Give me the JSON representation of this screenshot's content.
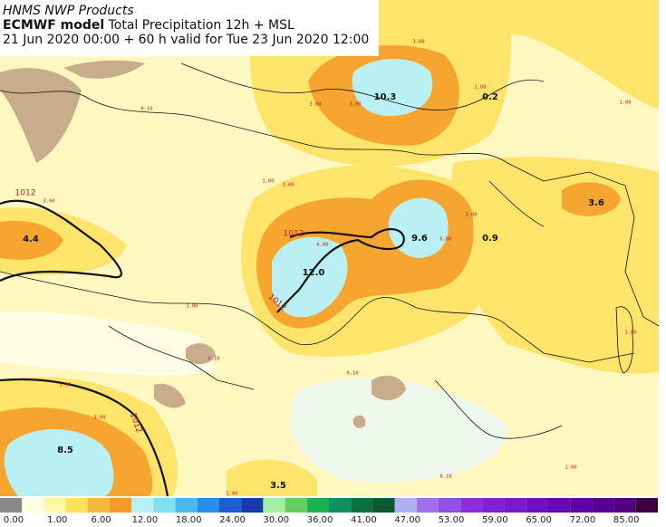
{
  "header": {
    "source": "HNMS NWP Products",
    "model": "ECMWF model",
    "product": "Total Precipitation 12h + MSL",
    "valid": "21 Jun 2020 00:00 + 60 h valid for Tue 23 Jun 2020 12:00"
  },
  "maxima": [
    "10.3",
    "0.2",
    "3.6",
    "4.4",
    "12.0",
    "9.6",
    "0.9",
    "8.5",
    "3.5"
  ],
  "isobar_labels": [
    "1012",
    "1012",
    "1012",
    "1012"
  ],
  "contour_labels": [
    "3.00",
    "3.00",
    "3.00",
    "3.00",
    "3.00",
    "3.00",
    "6.00",
    "6.00",
    "1.00",
    "1.00",
    "1.00",
    "1.00",
    "1.00",
    "1.00",
    "1.00",
    "1.00",
    "0.10",
    "0.10",
    "0.10",
    "3.00",
    "0.10"
  ],
  "colorbar": {
    "labels": [
      "0.00",
      "1.00",
      "6.00",
      "12.00",
      "18.00",
      "24.00",
      "30.00",
      "36.00",
      "41.00",
      "47.00",
      "53.00",
      "59.00",
      "65.00",
      "72.00",
      "85.00"
    ],
    "colors": [
      "#888888",
      "#fffde0",
      "#fff6a8",
      "#fde25a",
      "#f8b840",
      "#f49a2a",
      "#b8f0f4",
      "#7fe0f0",
      "#4ab8f0",
      "#2a8ee8",
      "#1a5fd0",
      "#1a3aa8",
      "#a0f0a0",
      "#60d060",
      "#20b050",
      "#109060",
      "#0a7040",
      "#085a30",
      "#b0b0f0",
      "#a070e8",
      "#9050e0",
      "#8a30d8",
      "#8020d0",
      "#7818c8",
      "#7010c0",
      "#6808b0",
      "#6000a0",
      "#580090",
      "#500080",
      "#3a0040"
    ]
  }
}
